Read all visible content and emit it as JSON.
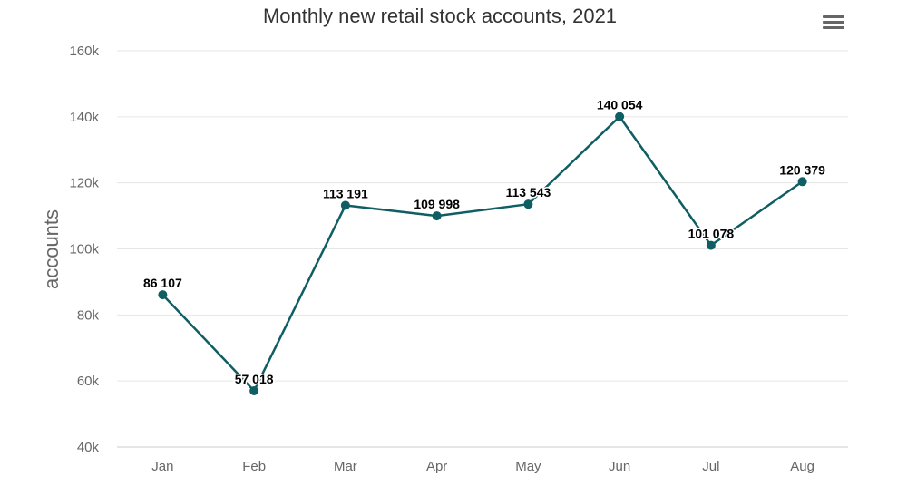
{
  "chart_data": {
    "type": "line",
    "title": "Monthly new retail stock accounts, 2021",
    "xlabel": "",
    "ylabel": "accounts",
    "categories": [
      "Jan",
      "Feb",
      "Mar",
      "Apr",
      "May",
      "Jun",
      "Jul",
      "Aug"
    ],
    "values": [
      86107,
      57018,
      113191,
      109998,
      113543,
      140054,
      101078,
      120379
    ],
    "data_labels": [
      "86 107",
      "57 018",
      "113 191",
      "109 998",
      "113 543",
      "140 054",
      "101 078",
      "120 379"
    ],
    "ylim": [
      40000,
      160000
    ],
    "yticks": [
      40000,
      60000,
      80000,
      100000,
      120000,
      140000,
      160000
    ],
    "ytick_labels": [
      "40k",
      "60k",
      "80k",
      "100k",
      "120k",
      "140k",
      "160k"
    ],
    "grid": true,
    "legend": "none",
    "colors": {
      "series": "#0f5e63",
      "grid": "#e6e6e6",
      "axis_text": "#666666",
      "label_text": "#000000"
    }
  },
  "ui": {
    "menu_icon": "hamburger-menu-icon"
  }
}
